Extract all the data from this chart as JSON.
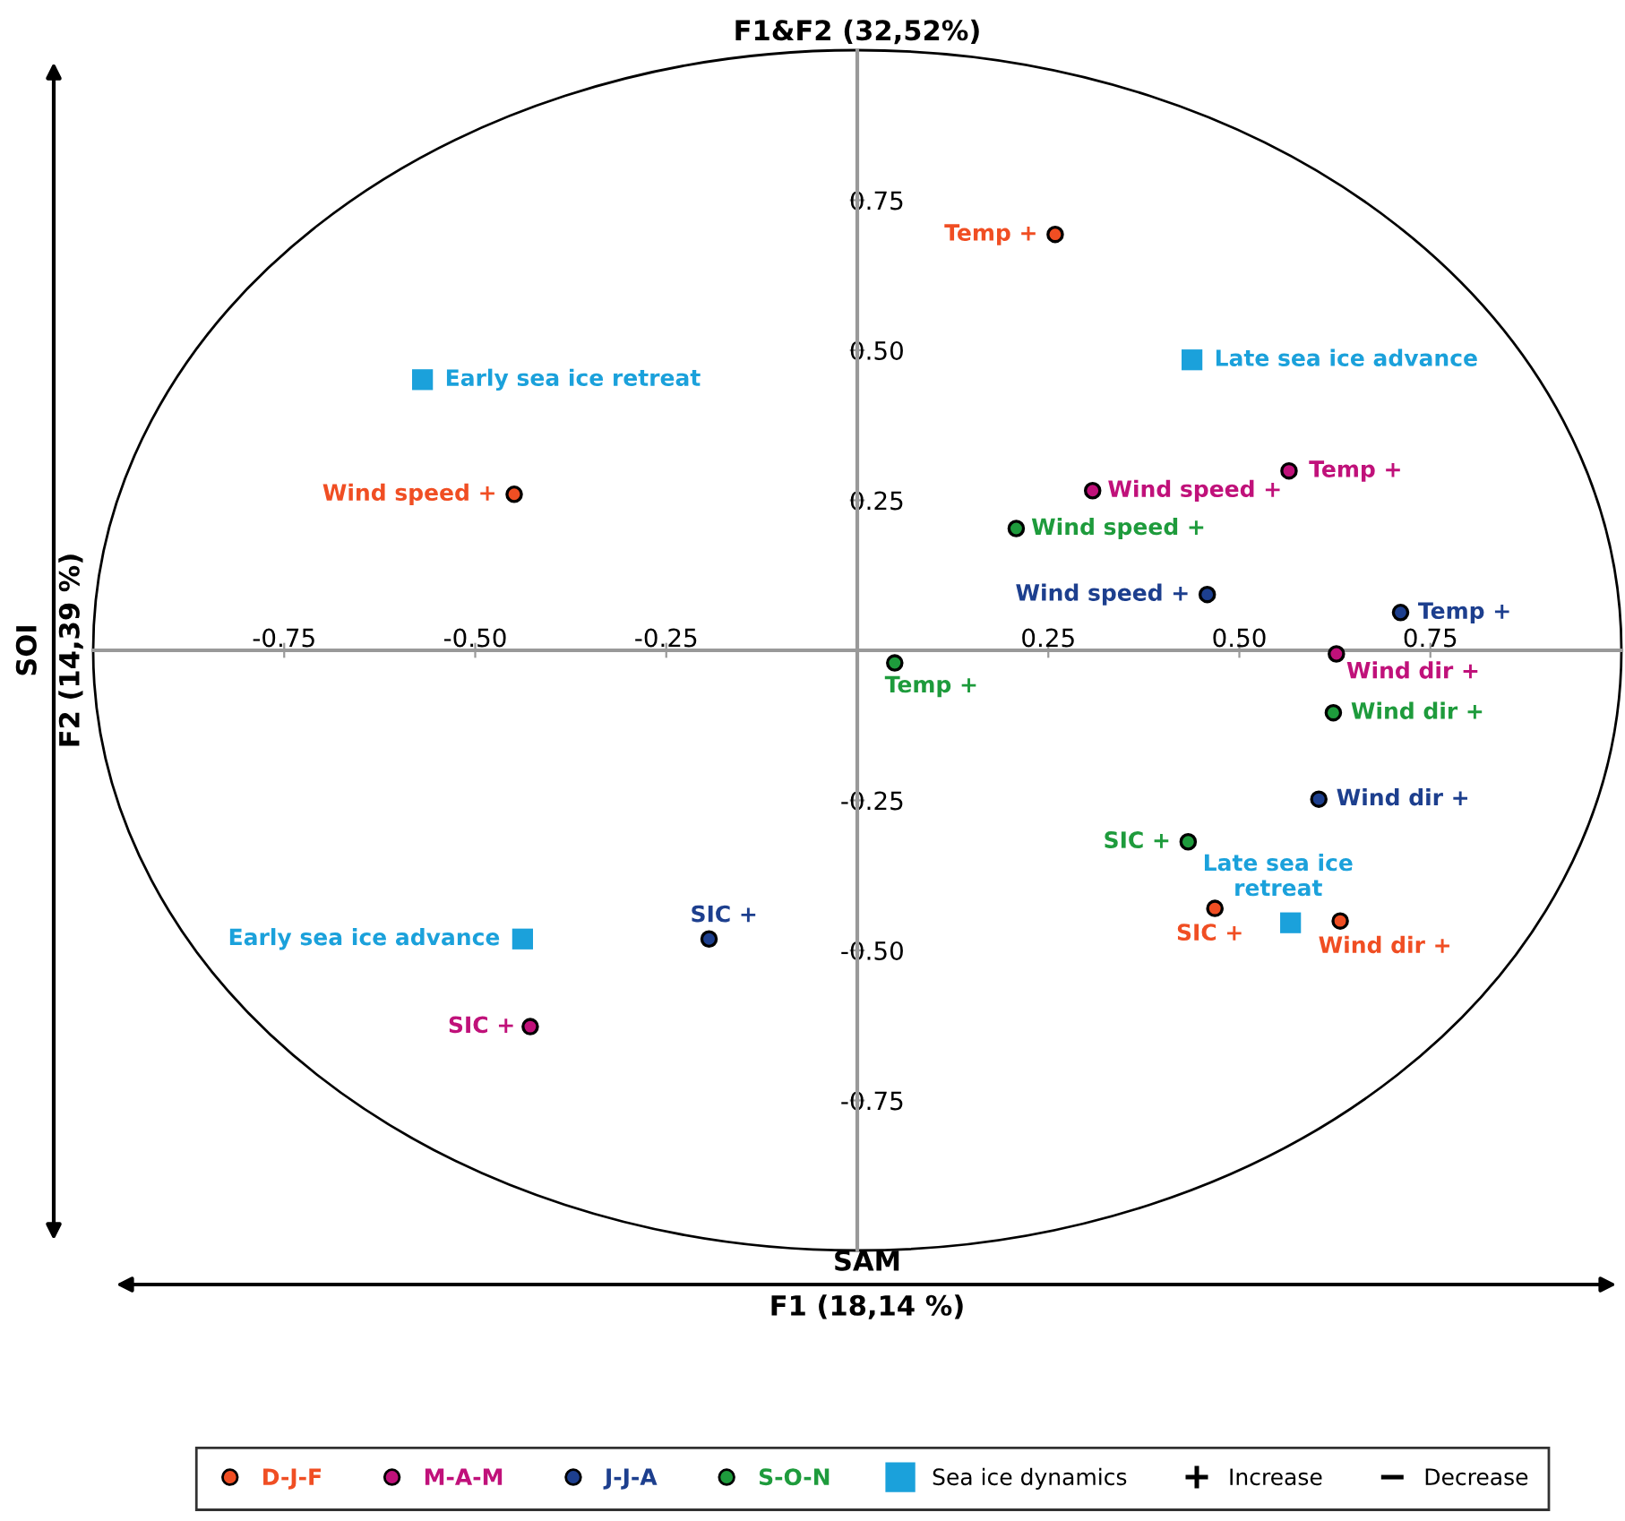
{
  "chart_data": {
    "type": "scatter",
    "title": "F1&F2 (32,52%)",
    "xlabel": "F1 (18,14 %)",
    "ylabel": "F2 (14,39 %)",
    "xlim": [
      -1,
      1
    ],
    "ylim": [
      -1,
      1
    ],
    "xticks": [
      -0.75,
      {
        "value": -0.5,
        "label": "-0.50"
      },
      -0.25,
      0.25,
      {
        "value": 0.5,
        "label": "0.50"
      },
      0.75
    ],
    "yticks": [
      -0.75,
      {
        "value": -0.5,
        "label": "-0.50"
      },
      -0.25,
      0.25,
      {
        "value": 0.5,
        "label": "0.50"
      },
      0.75
    ],
    "grid": false,
    "legend": "bottom",
    "annotations": [
      "SAM",
      "SOI",
      "Increase",
      "Decrease"
    ],
    "series": [
      {
        "name": "D-J-F",
        "color": "#f04e23",
        "marker": "circle",
        "x": [
          0.259,
          -0.449,
          0.468,
          0.632
        ],
        "values": [
          0.693,
          0.26,
          -0.43,
          -0.451
        ],
        "value_labels": [
          "Temp +",
          "Wind speed +",
          "SIC +",
          "Wind dir +"
        ]
      },
      {
        "name": "M-A-M",
        "color": "#c0117a",
        "marker": "circle",
        "x": [
          0.565,
          0.308,
          0.627,
          -0.428
        ],
        "values": [
          0.299,
          0.266,
          -0.006,
          -0.627
        ],
        "value_labels": [
          "Temp +",
          "Wind speed +",
          "Wind dir +",
          "SIC +"
        ]
      },
      {
        "name": "J-J-A",
        "color": "#1d3f8e",
        "marker": "circle",
        "x": [
          0.711,
          0.458,
          0.604,
          -0.194
        ],
        "values": [
          0.063,
          0.093,
          -0.248,
          -0.481
        ],
        "value_labels": [
          "Temp +",
          "Wind speed +",
          "Wind dir +",
          "SIC +"
        ]
      },
      {
        "name": "S-O-N",
        "color": "#1e9b3c",
        "marker": "circle",
        "x": [
          0.049,
          0.208,
          0.623,
          0.433
        ],
        "values": [
          -0.021,
          0.203,
          -0.104,
          -0.319
        ],
        "value_labels": [
          "Temp +",
          "Wind speed +",
          "Wind dir +",
          "SIC +"
        ]
      },
      {
        "name": "Sea ice dynamics",
        "color": "#1ba1db",
        "marker": "square",
        "x": [
          -0.569,
          0.438,
          -0.438,
          0.567
        ],
        "values": [
          0.451,
          0.484,
          -0.481,
          -0.454
        ],
        "value_labels": [
          "Early sea ice retreat",
          "Late sea ice advance",
          "Early sea ice advance",
          "Late sea ice\nretreat"
        ]
      }
    ]
  }
}
